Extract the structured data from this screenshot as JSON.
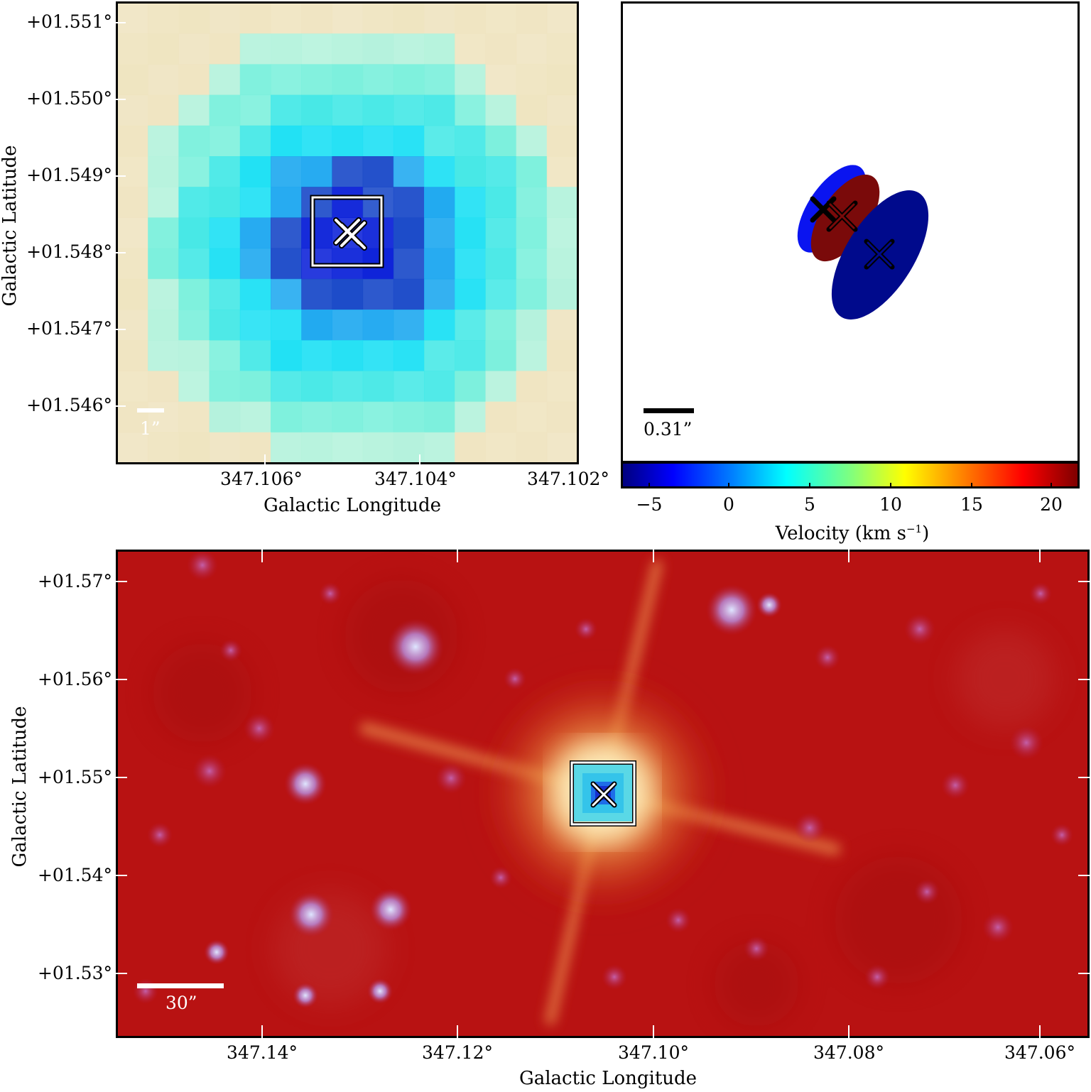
{
  "panel_top_left": {
    "ytick_labels": [
      "+01.551°",
      "+01.550°",
      "+01.549°",
      "+01.548°",
      "+01.547°",
      "+01.546°"
    ],
    "xtick_labels": [
      "347.106°",
      "347.104°",
      "347.102°"
    ],
    "xlabel": "Galactic Longitude",
    "ylabel": "Galactic Latitude",
    "scale_bar_label": "1”",
    "colormap": "rainbow-cyan"
  },
  "panel_top_right": {
    "scale_bar_label": "0.31”",
    "ellipse_colors": [
      "#0a14f0",
      "#7a0a0a",
      "#000a8c"
    ],
    "colorbar": {
      "tick_labels": [
        "−5",
        "0",
        "5",
        "10",
        "15",
        "20"
      ],
      "label": "Velocity (km s",
      "label_sup": "−1",
      "label_end": ")",
      "range": [
        -6.5,
        21.5
      ]
    }
  },
  "panel_bottom": {
    "ytick_labels": [
      "+01.57°",
      "+01.56°",
      "+01.55°",
      "+01.54°",
      "+01.53°"
    ],
    "xtick_labels": [
      "347.14°",
      "347.12°",
      "347.10°",
      "347.08°",
      "347.06°"
    ],
    "xlabel": "Galactic Longitude",
    "ylabel": "Galactic Latitude",
    "scale_bar_label": "30”",
    "background_color": "#b81212"
  }
}
